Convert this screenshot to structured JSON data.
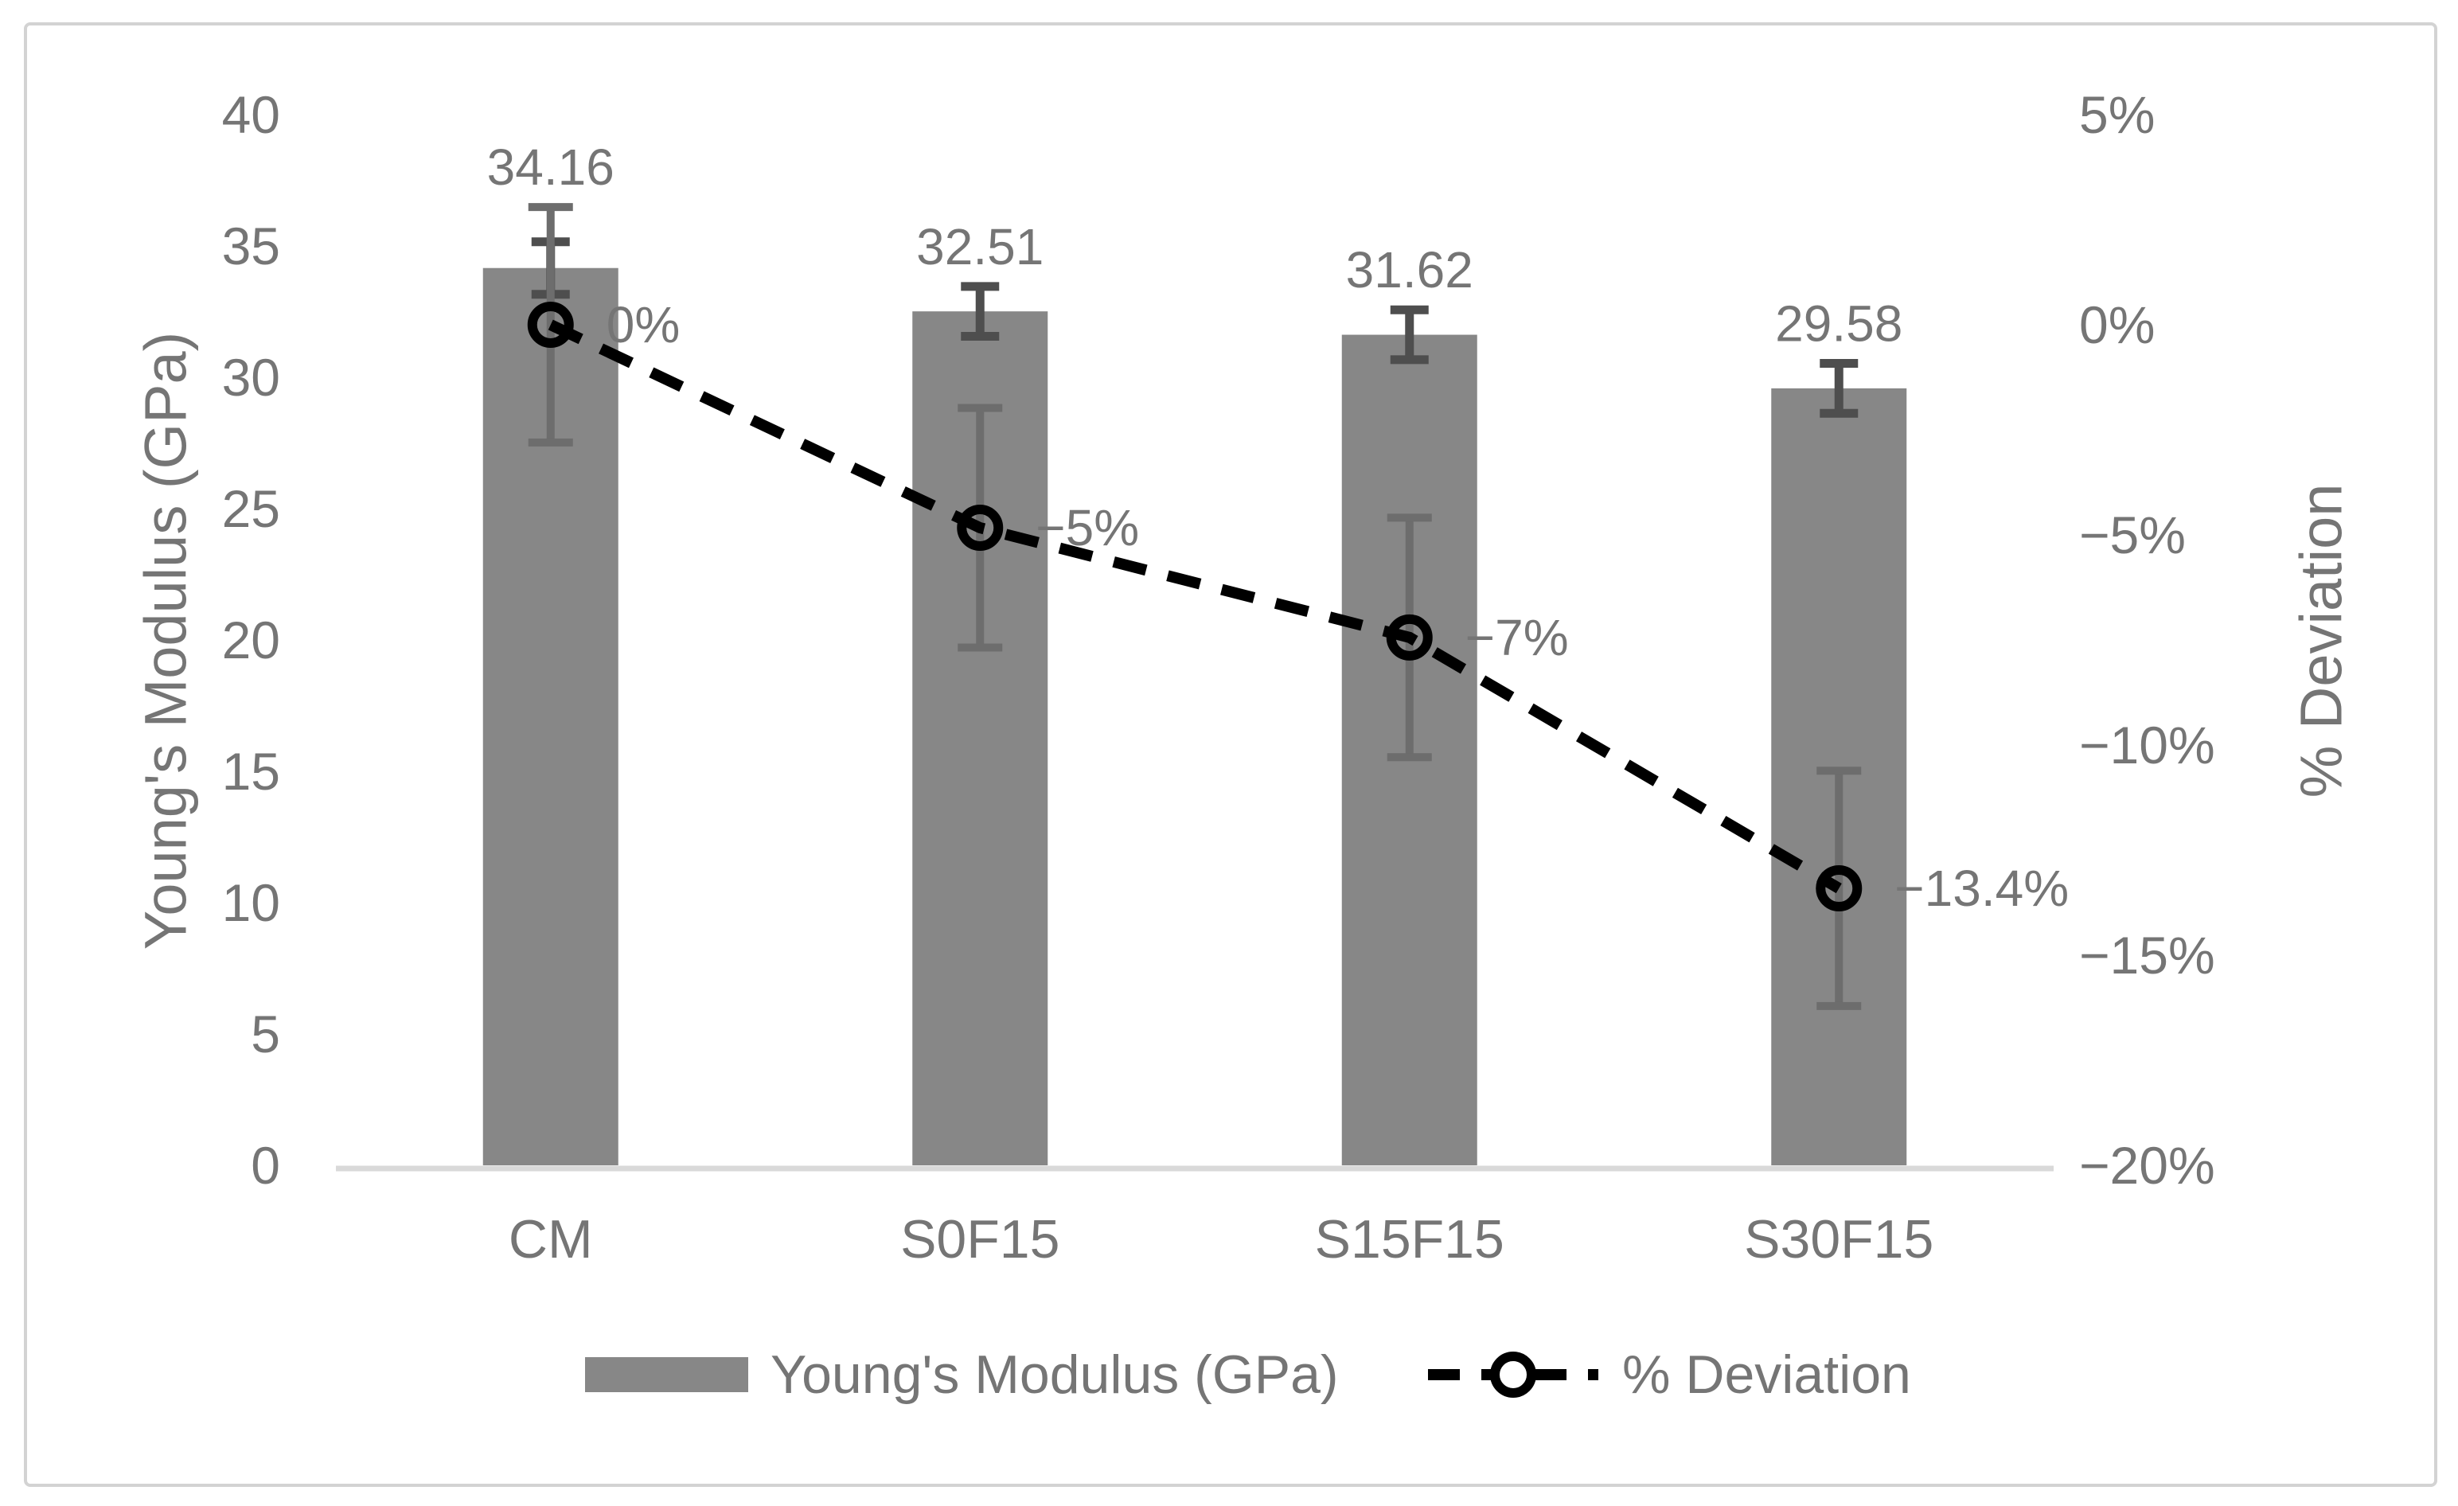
{
  "figure": {
    "background": "#ffffff",
    "border_color": "#d3d3d3",
    "text_color": "#757575",
    "axis_line_color": "#d9d9d9"
  },
  "chart_data": {
    "type": "bar",
    "subtype": "bar-line-combo",
    "grid": false,
    "categories": [
      "CM",
      "S0F15",
      "S15F15",
      "S30F15"
    ],
    "series": [
      {
        "name": "Young's Modulus (GPa)",
        "type": "bar",
        "axis": "left",
        "values": [
          34.16,
          32.51,
          31.62,
          29.58
        ],
        "value_labels": [
          "34.16",
          "32.51",
          "31.62",
          "29.58"
        ],
        "error": [
          1.0,
          0.95,
          0.95,
          0.95
        ],
        "color": "#878787",
        "error_color": "#4e4e4e"
      },
      {
        "name": "% Deviation",
        "type": "line",
        "axis": "right",
        "dashed": true,
        "marker": "open-circle",
        "values": [
          0,
          -4.83,
          -7.44,
          -13.41
        ],
        "point_labels": [
          "0%",
          "−5%",
          "−7%",
          "−13.4%"
        ],
        "error": [
          2.8,
          2.85,
          2.85,
          2.8
        ],
        "color": "#000000",
        "error_color": "#6d6d6d"
      }
    ],
    "left_axis": {
      "title": "Young's Modulus (GPa)",
      "min": 0,
      "max": 40,
      "step": 5,
      "ticks": [
        "40",
        "35",
        "30",
        "25",
        "20",
        "15",
        "10",
        "5",
        "0"
      ]
    },
    "right_axis": {
      "title": "% Deviation",
      "min": -20,
      "max": 5,
      "step": 5,
      "ticks": [
        "5%",
        "0%",
        "−5%",
        "−10%",
        "−15%",
        "−20%"
      ]
    },
    "legend": {
      "position": "bottom",
      "entries": [
        "Young's Modulus (GPa)",
        "% Deviation"
      ]
    }
  }
}
